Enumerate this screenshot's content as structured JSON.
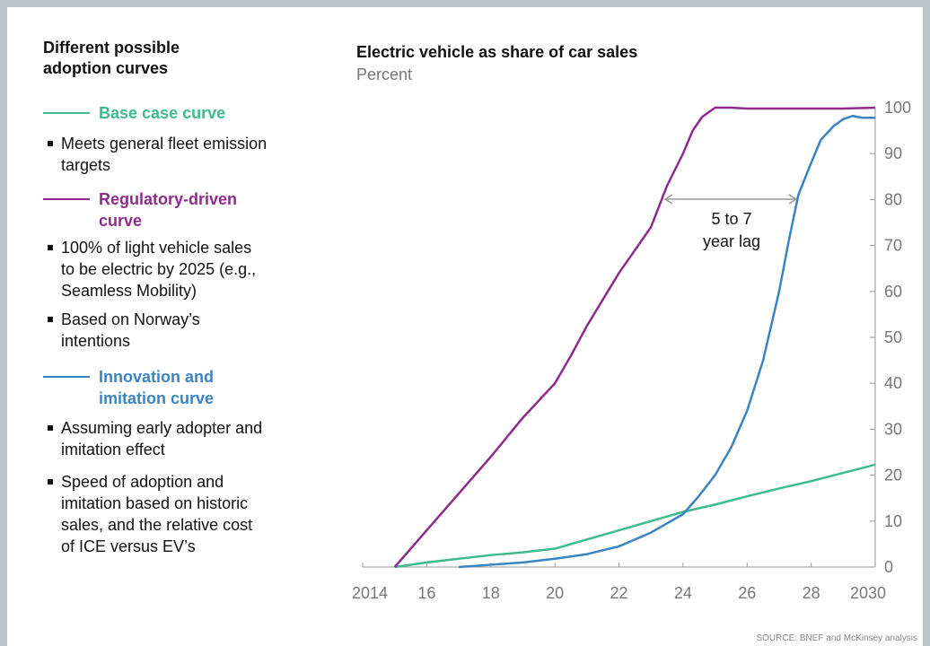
{
  "chart_data": {
    "type": "line",
    "title": "Electric vehicle as share of car sales",
    "subtitle": "Percent",
    "annotation": [
      "5 to 7",
      "year lag"
    ],
    "source": "SOURCE: BNEF and McKinsey analysis",
    "xlim": [
      2014,
      2030
    ],
    "xticks": [
      2014,
      {
        "value": 2016,
        "label": "16"
      },
      {
        "value": 2018,
        "label": "18"
      },
      {
        "value": 2020,
        "label": "20"
      },
      {
        "value": 2022,
        "label": "22"
      },
      {
        "value": 2024,
        "label": "24"
      },
      {
        "value": 2026,
        "label": "26"
      },
      {
        "value": 2028,
        "label": "28"
      },
      2030
    ],
    "ylim": [
      0,
      100
    ],
    "yticks": [
      0,
      10,
      20,
      30,
      40,
      50,
      60,
      70,
      80,
      90,
      100
    ],
    "series": [
      {
        "name": "Base case curve",
        "color": "#3dbb8c",
        "x": [
          2015,
          2016,
          2017,
          2018,
          2019,
          2020,
          2021,
          2022,
          2023,
          2024,
          2025,
          2026,
          2027,
          2028,
          2029,
          2030
        ],
        "values": [
          0,
          1,
          1.8,
          2.6,
          3.2,
          4,
          6,
          8,
          10,
          12,
          13.6,
          15.4,
          17.1,
          18.7,
          20.5,
          22.3
        ]
      },
      {
        "name": "Regulatory-driven curve",
        "color": "#8e2c8e",
        "x": [
          2015,
          2016,
          2017,
          2018,
          2019,
          2020,
          2020.5,
          2021,
          2022,
          2023,
          2023.5,
          2024,
          2024.3,
          2024.6,
          2025,
          2025.5,
          2026,
          2027,
          2028,
          2029,
          2030
        ],
        "values": [
          0,
          8,
          16,
          24,
          32.5,
          40,
          46,
          52.5,
          64,
          74,
          83,
          90,
          95,
          98,
          100,
          100,
          99.8,
          99.8,
          99.8,
          99.8,
          100
        ]
      },
      {
        "name": "Innovation and imitation curve",
        "color": "#3a84c4",
        "x": [
          2017,
          2018,
          2019,
          2020,
          2021,
          2022,
          2023,
          2024,
          2024.5,
          2025,
          2025.5,
          2026,
          2026.5,
          2027,
          2027.3,
          2027.6,
          2028,
          2028.3,
          2028.7,
          2029,
          2029.3,
          2029.6,
          2030
        ],
        "values": [
          0,
          0.5,
          1,
          1.8,
          2.8,
          4.5,
          7.5,
          11.5,
          15.5,
          20,
          26,
          34,
          45,
          60,
          71,
          81,
          88,
          93,
          96,
          97.5,
          98.2,
          97.8,
          97.8
        ]
      }
    ]
  },
  "legend": {
    "title": "Different possible adoption curves",
    "notes": [
      [
        [
          "Meets general fleet emission",
          "targets"
        ]
      ],
      [
        [
          "100% of light vehicle sales",
          "to be electric by 2025 (e.g.,",
          "Seamless Mobility)"
        ],
        [
          "Based on Norway’s",
          "intentions"
        ]
      ],
      [
        [
          "Assuming early adopter and",
          "imitation effect"
        ],
        [
          "Speed of adoption and",
          "imitation based on historic",
          "sales, and the relative cost",
          "of ICE versus EV’s"
        ]
      ]
    ]
  }
}
